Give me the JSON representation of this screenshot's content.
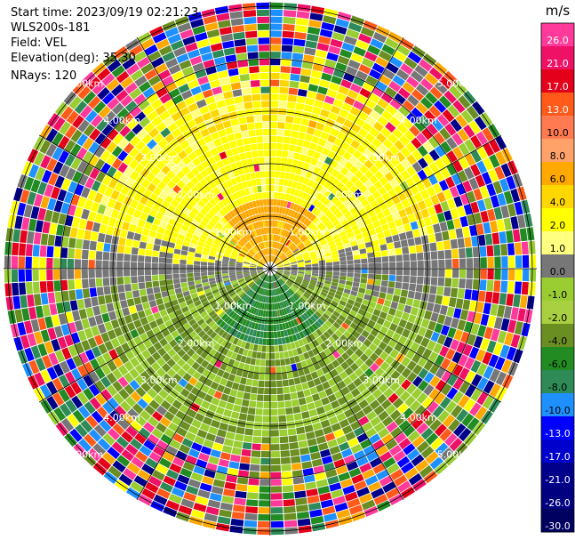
{
  "header": {
    "start_time": "Start time: 2023/09/19 02:21:23",
    "instrument": "WLS200s-181",
    "field": "Field: VEL",
    "elevation": "Elevation(deg): 35.30",
    "nrays": "NRays: 120"
  },
  "chart_data": {
    "type": "heatmap",
    "projection": "polar (PPI)",
    "field": "VEL",
    "nrays": 120,
    "elevation_deg": 35.3,
    "range_rings": [
      {
        "label": "1.00km",
        "radius_km": 1
      },
      {
        "label": "2.00km",
        "radius_km": 2
      },
      {
        "label": "3.00km",
        "radius_km": 3
      },
      {
        "label": "4.00km",
        "radius_km": 4
      },
      {
        "label": "5.00km",
        "radius_km": 5
      }
    ],
    "max_range_km": 5.1,
    "spokes_deg": [
      0,
      30,
      60,
      90,
      120,
      150,
      180,
      210,
      240,
      270,
      300,
      330
    ],
    "colorbar": {
      "unit": "m/s",
      "bins": [
        {
          "label": "26.0",
          "color": "#ff3a9a"
        },
        {
          "label": "21.0",
          "color": "#ee1166"
        },
        {
          "label": "17.0",
          "color": "#e4001a"
        },
        {
          "label": "13.0",
          "color": "#ff5a1a"
        },
        {
          "label": "10.0",
          "color": "#ff7a50"
        },
        {
          "label": "8.0",
          "color": "#ffa26a"
        },
        {
          "label": "6.0",
          "color": "#ffa800"
        },
        {
          "label": "4.0",
          "color": "#ffd700"
        },
        {
          "label": "2.0",
          "color": "#ffff00"
        },
        {
          "label": "1.0",
          "color": "#ffff80"
        },
        {
          "label": "0.0",
          "color": "#777777"
        },
        {
          "label": "-1.0",
          "color": "#9acd32"
        },
        {
          "label": "-2.0",
          "color": "#a8d040"
        },
        {
          "label": "-4.0",
          "color": "#6b8e23"
        },
        {
          "label": "-6.0",
          "color": "#228b22"
        },
        {
          "label": "-8.0",
          "color": "#2e8b57"
        },
        {
          "label": "-10.0",
          "color": "#1e90ff"
        },
        {
          "label": "-13.0",
          "color": "#0000ff"
        },
        {
          "label": "-17.0",
          "color": "#0000cd"
        },
        {
          "label": "-21.0",
          "color": "#00008b"
        },
        {
          "label": "-26.0",
          "color": "#000080"
        },
        {
          "label": "-30.0",
          "color": "#000060"
        }
      ]
    },
    "pattern": "approaching (negative, green) velocities in southern half, receding (positive, yellow/orange) in northern half, near-zero (grey) band along east-west axis, noisy multicolour outer ranges"
  }
}
